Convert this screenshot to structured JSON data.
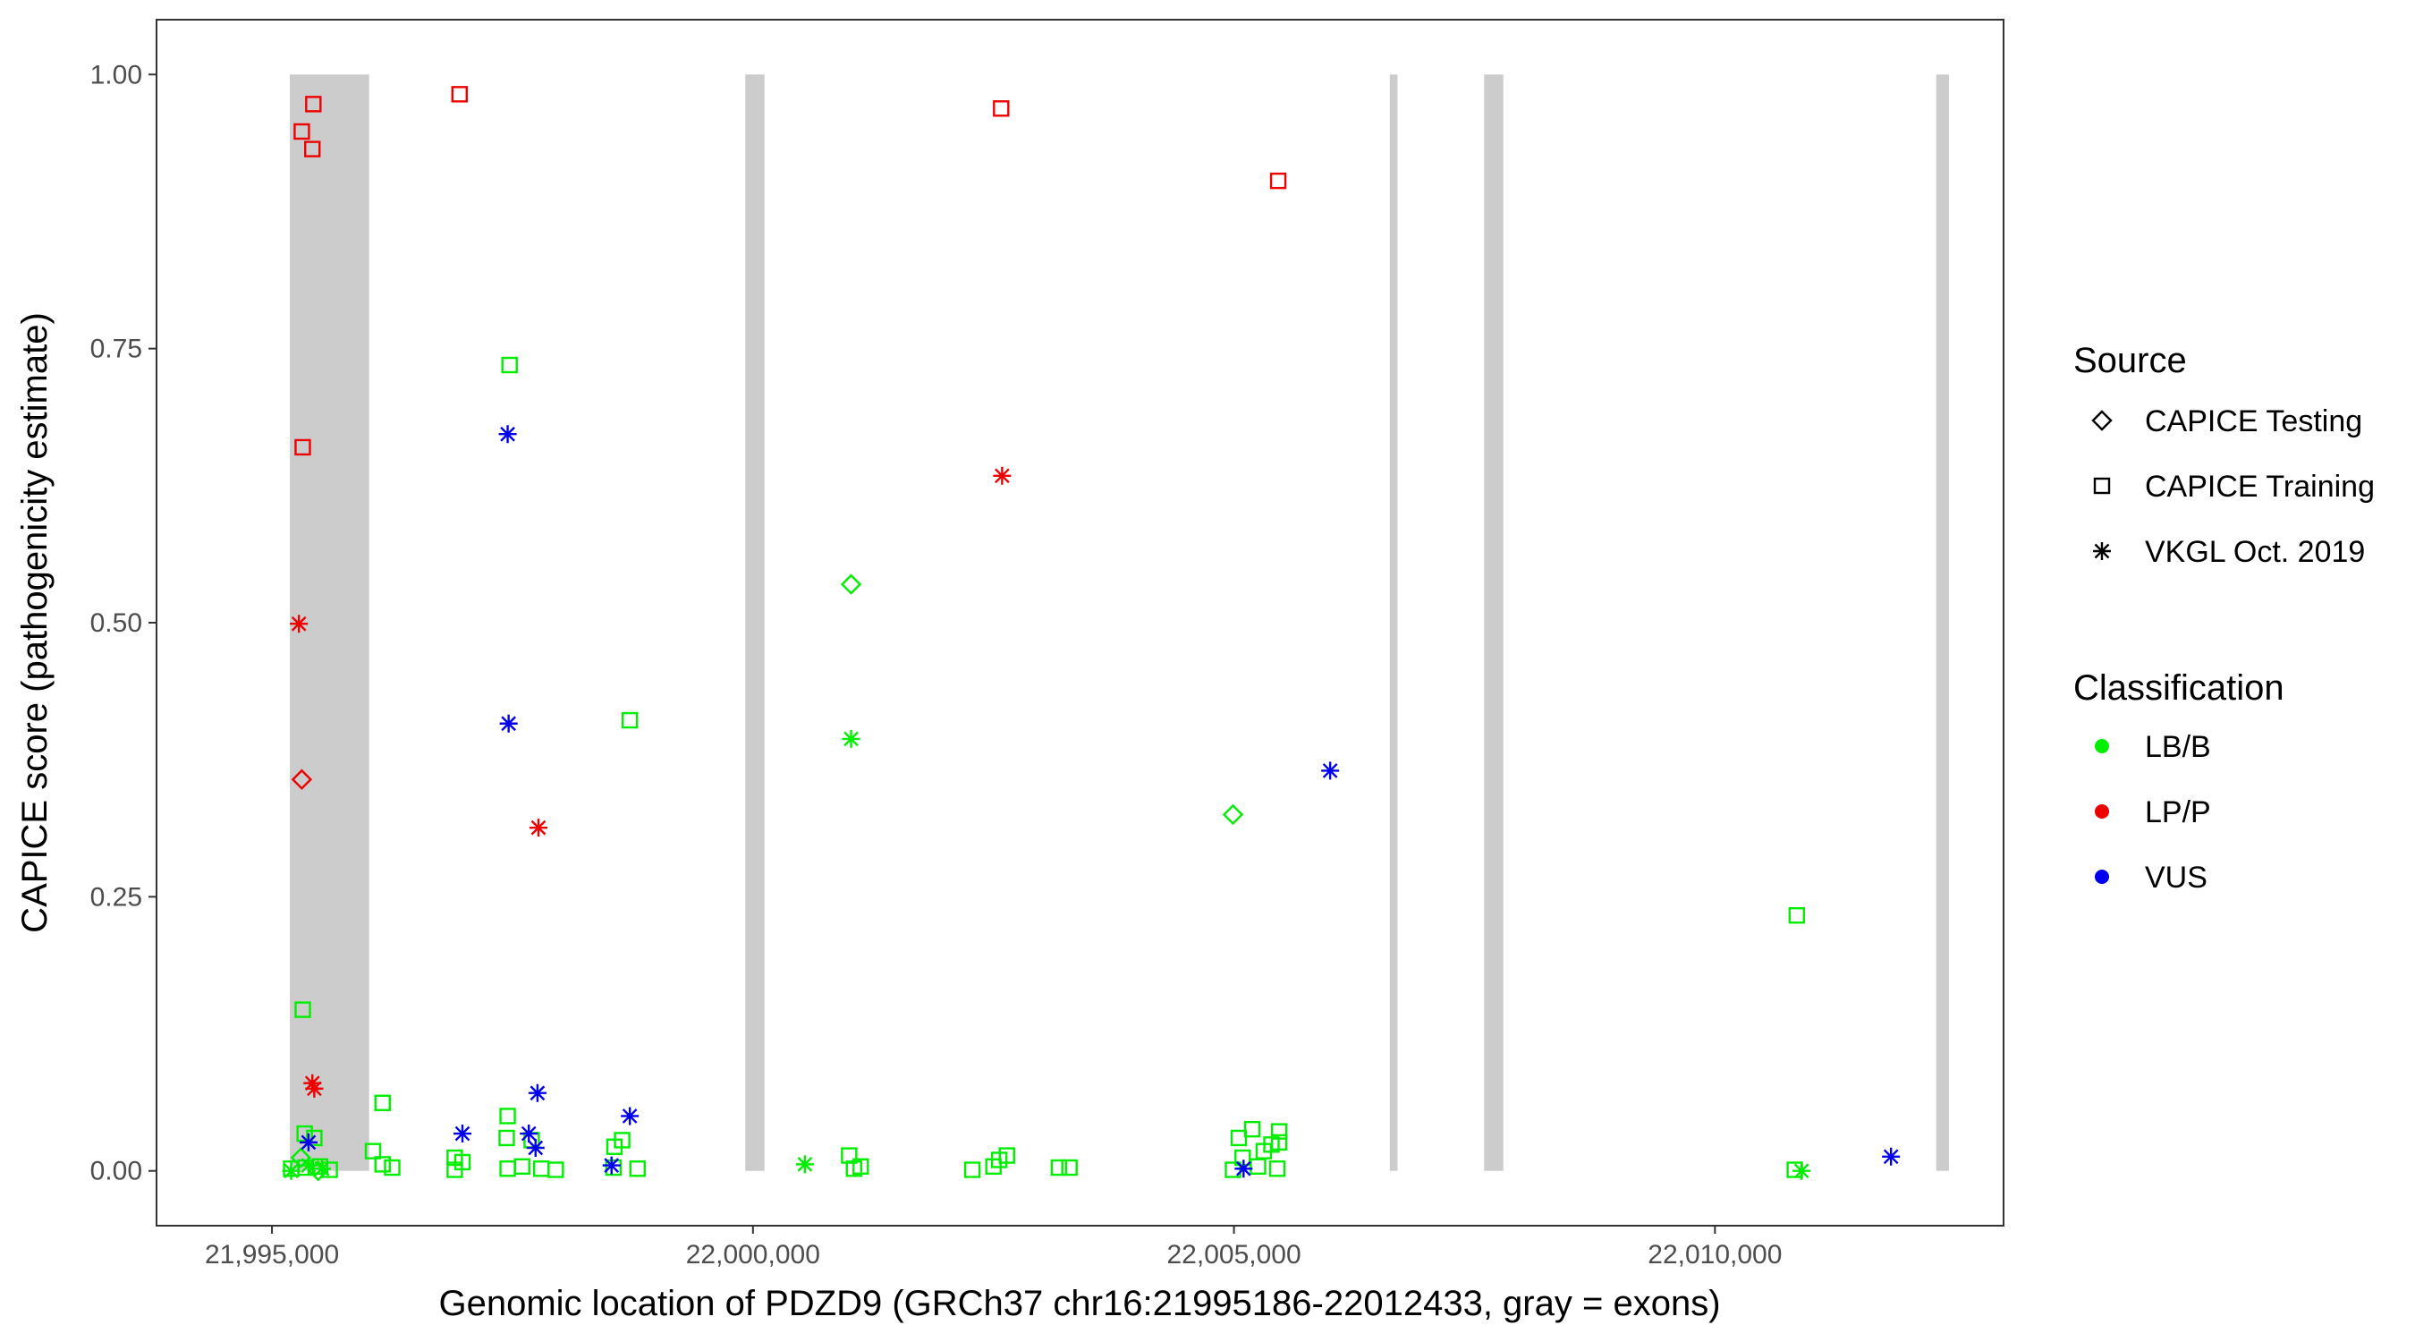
{
  "chart_data": {
    "type": "scatter",
    "title": "",
    "xlabel": "Genomic location of PDZD9 (GRCh37 chr16:21995186-22012433, gray = exons)",
    "ylabel": "CAPICE score (pathogenicity estimate)",
    "xlim": [
      21993800,
      22013000
    ],
    "ylim": [
      -0.05,
      1.05
    ],
    "grid": false,
    "x_ticks": [
      {
        "value": 21995000,
        "label": "21,995,000"
      },
      {
        "value": 22000000,
        "label": "22,000,000"
      },
      {
        "value": 22005000,
        "label": "22,005,000"
      },
      {
        "value": 22010000,
        "label": "22,010,000"
      }
    ],
    "y_ticks": [
      {
        "value": 0,
        "label": "0.00"
      },
      {
        "value": 0.25,
        "label": "0.25"
      },
      {
        "value": 0.5,
        "label": "0.50"
      },
      {
        "value": 0.75,
        "label": "0.75"
      },
      {
        "value": 1.0,
        "label": "1.00"
      }
    ],
    "exons": [
      {
        "start": 21995186,
        "end": 21996010
      },
      {
        "start": 21999920,
        "end": 22000120
      },
      {
        "start": 22006620,
        "end": 22006700
      },
      {
        "start": 22007600,
        "end": 22007800
      },
      {
        "start": 22012300,
        "end": 22012433
      }
    ],
    "colors": {
      "exon": "#cccccc",
      "LB/B": "#00ee00",
      "LP/P": "#ee0000",
      "VUS": "#0000ee"
    },
    "legend": {
      "position": "right",
      "source_title": "Source",
      "source_items": [
        {
          "label": "CAPICE Testing",
          "shape": "diamond"
        },
        {
          "label": "CAPICE Training",
          "shape": "square"
        },
        {
          "label": "VKGL Oct. 2019",
          "shape": "asterisk"
        }
      ],
      "class_title": "Classification",
      "class_items": [
        {
          "label": "LB/B",
          "key": "LB/B"
        },
        {
          "label": "LP/P",
          "key": "LP/P"
        },
        {
          "label": "VUS",
          "key": "VUS"
        }
      ]
    },
    "points": [
      {
        "x": 21995310,
        "y": 0.948,
        "cls": "LP/P",
        "src": "square"
      },
      {
        "x": 21995430,
        "y": 0.973,
        "cls": "LP/P",
        "src": "square"
      },
      {
        "x": 21995420,
        "y": 0.932,
        "cls": "LP/P",
        "src": "square"
      },
      {
        "x": 21996950,
        "y": 0.982,
        "cls": "LP/P",
        "src": "square"
      },
      {
        "x": 21995320,
        "y": 0.66,
        "cls": "LP/P",
        "src": "square"
      },
      {
        "x": 21995280,
        "y": 0.499,
        "cls": "LP/P",
        "src": "asterisk"
      },
      {
        "x": 21995310,
        "y": 0.357,
        "cls": "LP/P",
        "src": "diamond"
      },
      {
        "x": 21997770,
        "y": 0.313,
        "cls": "LP/P",
        "src": "asterisk"
      },
      {
        "x": 21995420,
        "y": 0.08,
        "cls": "LP/P",
        "src": "asterisk"
      },
      {
        "x": 21995440,
        "y": 0.075,
        "cls": "LP/P",
        "src": "asterisk"
      },
      {
        "x": 22002580,
        "y": 0.969,
        "cls": "LP/P",
        "src": "square"
      },
      {
        "x": 22002590,
        "y": 0.634,
        "cls": "LP/P",
        "src": "asterisk"
      },
      {
        "x": 22005460,
        "y": 0.903,
        "cls": "LP/P",
        "src": "square"
      },
      {
        "x": 21997470,
        "y": 0.735,
        "cls": "LB/B",
        "src": "square"
      },
      {
        "x": 21998720,
        "y": 0.411,
        "cls": "LB/B",
        "src": "square"
      },
      {
        "x": 21995320,
        "y": 0.147,
        "cls": "LB/B",
        "src": "square"
      },
      {
        "x": 21996150,
        "y": 0.062,
        "cls": "LB/B",
        "src": "square"
      },
      {
        "x": 21997450,
        "y": 0.05,
        "cls": "LB/B",
        "src": "square"
      },
      {
        "x": 21997440,
        "y": 0.03,
        "cls": "LB/B",
        "src": "square"
      },
      {
        "x": 21995340,
        "y": 0.034,
        "cls": "LB/B",
        "src": "square"
      },
      {
        "x": 21995440,
        "y": 0.03,
        "cls": "LB/B",
        "src": "square"
      },
      {
        "x": 21996050,
        "y": 0.018,
        "cls": "LB/B",
        "src": "square"
      },
      {
        "x": 21996900,
        "y": 0.012,
        "cls": "LB/B",
        "src": "square"
      },
      {
        "x": 21996980,
        "y": 0.008,
        "cls": "LB/B",
        "src": "square"
      },
      {
        "x": 21998560,
        "y": 0.022,
        "cls": "LB/B",
        "src": "square"
      },
      {
        "x": 21998640,
        "y": 0.028,
        "cls": "LB/B",
        "src": "square"
      },
      {
        "x": 21997700,
        "y": 0.028,
        "cls": "LB/B",
        "src": "square"
      },
      {
        "x": 21995200,
        "y": 0.002,
        "cls": "LB/B",
        "src": "square"
      },
      {
        "x": 21995350,
        "y": 0.003,
        "cls": "LB/B",
        "src": "square"
      },
      {
        "x": 21995500,
        "y": 0.004,
        "cls": "LB/B",
        "src": "square"
      },
      {
        "x": 21995600,
        "y": 0.001,
        "cls": "LB/B",
        "src": "square"
      },
      {
        "x": 21996150,
        "y": 0.006,
        "cls": "LB/B",
        "src": "square"
      },
      {
        "x": 21996250,
        "y": 0.003,
        "cls": "LB/B",
        "src": "square"
      },
      {
        "x": 21996900,
        "y": 0.001,
        "cls": "LB/B",
        "src": "square"
      },
      {
        "x": 21997450,
        "y": 0.002,
        "cls": "LB/B",
        "src": "square"
      },
      {
        "x": 21997600,
        "y": 0.004,
        "cls": "LB/B",
        "src": "square"
      },
      {
        "x": 21997800,
        "y": 0.002,
        "cls": "LB/B",
        "src": "square"
      },
      {
        "x": 21997950,
        "y": 0.001,
        "cls": "LB/B",
        "src": "square"
      },
      {
        "x": 21998550,
        "y": 0.003,
        "cls": "LB/B",
        "src": "square"
      },
      {
        "x": 21998800,
        "y": 0.002,
        "cls": "LB/B",
        "src": "square"
      },
      {
        "x": 21995380,
        "y": 0.005,
        "cls": "LB/B",
        "src": "asterisk"
      },
      {
        "x": 21995200,
        "y": 0.0,
        "cls": "LB/B",
        "src": "asterisk"
      },
      {
        "x": 21995520,
        "y": 0.002,
        "cls": "LB/B",
        "src": "asterisk"
      },
      {
        "x": 21995300,
        "y": 0.012,
        "cls": "LB/B",
        "src": "diamond"
      },
      {
        "x": 21995480,
        "y": 0.0,
        "cls": "LB/B",
        "src": "diamond"
      },
      {
        "x": 22001020,
        "y": 0.535,
        "cls": "LB/B",
        "src": "diamond"
      },
      {
        "x": 22001020,
        "y": 0.394,
        "cls": "LB/B",
        "src": "asterisk"
      },
      {
        "x": 22000540,
        "y": 0.006,
        "cls": "LB/B",
        "src": "asterisk"
      },
      {
        "x": 22001000,
        "y": 0.014,
        "cls": "LB/B",
        "src": "square"
      },
      {
        "x": 22001050,
        "y": 0.002,
        "cls": "LB/B",
        "src": "square"
      },
      {
        "x": 22001120,
        "y": 0.004,
        "cls": "LB/B",
        "src": "square"
      },
      {
        "x": 22002280,
        "y": 0.001,
        "cls": "LB/B",
        "src": "square"
      },
      {
        "x": 22002500,
        "y": 0.004,
        "cls": "LB/B",
        "src": "square"
      },
      {
        "x": 22002560,
        "y": 0.01,
        "cls": "LB/B",
        "src": "square"
      },
      {
        "x": 22002640,
        "y": 0.014,
        "cls": "LB/B",
        "src": "square"
      },
      {
        "x": 22003180,
        "y": 0.003,
        "cls": "LB/B",
        "src": "square"
      },
      {
        "x": 22003290,
        "y": 0.003,
        "cls": "LB/B",
        "src": "square"
      },
      {
        "x": 22004990,
        "y": 0.325,
        "cls": "LB/B",
        "src": "diamond"
      },
      {
        "x": 22004990,
        "y": 0.001,
        "cls": "LB/B",
        "src": "square"
      },
      {
        "x": 22005050,
        "y": 0.03,
        "cls": "LB/B",
        "src": "square"
      },
      {
        "x": 22005090,
        "y": 0.012,
        "cls": "LB/B",
        "src": "square"
      },
      {
        "x": 22005190,
        "y": 0.038,
        "cls": "LB/B",
        "src": "square"
      },
      {
        "x": 22005310,
        "y": 0.018,
        "cls": "LB/B",
        "src": "square"
      },
      {
        "x": 22005390,
        "y": 0.024,
        "cls": "LB/B",
        "src": "square"
      },
      {
        "x": 22005470,
        "y": 0.036,
        "cls": "LB/B",
        "src": "square"
      },
      {
        "x": 22005470,
        "y": 0.026,
        "cls": "LB/B",
        "src": "square"
      },
      {
        "x": 22005250,
        "y": 0.004,
        "cls": "LB/B",
        "src": "square"
      },
      {
        "x": 22005450,
        "y": 0.002,
        "cls": "LB/B",
        "src": "square"
      },
      {
        "x": 22010850,
        "y": 0.233,
        "cls": "LB/B",
        "src": "square"
      },
      {
        "x": 22010830,
        "y": 0.001,
        "cls": "LB/B",
        "src": "square"
      },
      {
        "x": 22010900,
        "y": 0.0,
        "cls": "LB/B",
        "src": "asterisk"
      },
      {
        "x": 21997450,
        "y": 0.672,
        "cls": "VUS",
        "src": "asterisk"
      },
      {
        "x": 21997460,
        "y": 0.408,
        "cls": "VUS",
        "src": "asterisk"
      },
      {
        "x": 21995380,
        "y": 0.026,
        "cls": "VUS",
        "src": "asterisk"
      },
      {
        "x": 21996980,
        "y": 0.034,
        "cls": "VUS",
        "src": "asterisk"
      },
      {
        "x": 21997670,
        "y": 0.034,
        "cls": "VUS",
        "src": "asterisk"
      },
      {
        "x": 21997760,
        "y": 0.071,
        "cls": "VUS",
        "src": "asterisk"
      },
      {
        "x": 21997740,
        "y": 0.021,
        "cls": "VUS",
        "src": "asterisk"
      },
      {
        "x": 21998720,
        "y": 0.05,
        "cls": "VUS",
        "src": "asterisk"
      },
      {
        "x": 21998530,
        "y": 0.005,
        "cls": "VUS",
        "src": "asterisk"
      },
      {
        "x": 22005100,
        "y": 0.002,
        "cls": "VUS",
        "src": "asterisk"
      },
      {
        "x": 22006000,
        "y": 0.365,
        "cls": "VUS",
        "src": "asterisk"
      },
      {
        "x": 22011830,
        "y": 0.013,
        "cls": "VUS",
        "src": "asterisk"
      }
    ]
  }
}
